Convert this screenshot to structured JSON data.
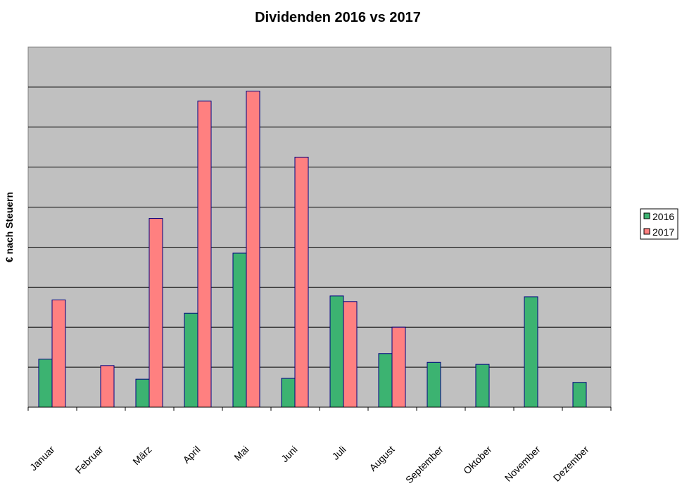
{
  "chart_data": {
    "type": "bar",
    "title": "Dividenden 2016 vs 2017",
    "xlabel": "",
    "ylabel": "€ nach Steuern",
    "categories": [
      "Januar",
      "Februar",
      "März",
      "April",
      "Mai",
      "Juni",
      "Juli",
      "August",
      "September",
      "Oktober",
      "November",
      "Dezember"
    ],
    "series": [
      {
        "name": "2016",
        "color": "#3cb371",
        "values": [
          12,
          0,
          7,
          23.5,
          38.5,
          7.2,
          27.8,
          13.4,
          11.2,
          10.7,
          27.6,
          6.2
        ]
      },
      {
        "name": "2017",
        "color": "#ff8080",
        "values": [
          26.8,
          10.4,
          47.2,
          76.5,
          79,
          62.5,
          26.4,
          20,
          0,
          0,
          0,
          0
        ]
      }
    ],
    "ylim": [
      0,
      90
    ],
    "grid": true,
    "legend_position": "right",
    "plot_background": "#c0c0c0"
  }
}
